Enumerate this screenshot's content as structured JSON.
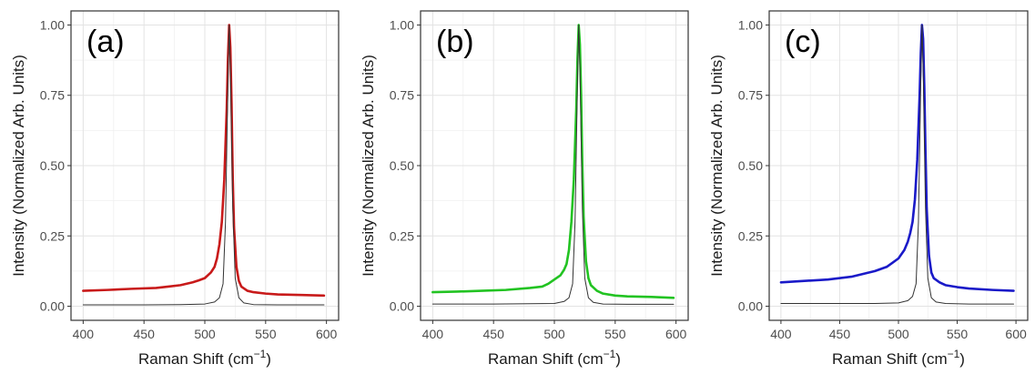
{
  "chart_data": [
    {
      "type": "line",
      "panel_label": "(a)",
      "xlabel": "Raman Shift (cm",
      "xlabel_sup": "−1",
      "xlabel_close": ")",
      "ylabel": "Intensity (Normalized Arb. Units)",
      "xlim": [
        400,
        600
      ],
      "ylim": [
        0,
        1
      ],
      "x_ticks": [
        "400",
        "450",
        "500",
        "550",
        "600"
      ],
      "y_ticks": [
        "0.00",
        "0.25",
        "0.50",
        "0.75",
        "1.00"
      ],
      "grid": true,
      "series": [
        {
          "color": "#c81a1a",
          "x": [
            400,
            420,
            440,
            460,
            470,
            480,
            490,
            495,
            500,
            505,
            508,
            510,
            512,
            514,
            516,
            518,
            519,
            520,
            521,
            522,
            523,
            524,
            526,
            528,
            530,
            535,
            540,
            550,
            560,
            580,
            598
          ],
          "y": [
            0.055,
            0.058,
            0.062,
            0.065,
            0.07,
            0.075,
            0.085,
            0.092,
            0.1,
            0.12,
            0.14,
            0.17,
            0.22,
            0.3,
            0.45,
            0.7,
            0.88,
            1.0,
            0.92,
            0.72,
            0.45,
            0.28,
            0.14,
            0.09,
            0.07,
            0.055,
            0.05,
            0.045,
            0.042,
            0.04,
            0.038
          ]
        },
        {
          "color": "#333333",
          "x": [
            400,
            450,
            480,
            500,
            508,
            512,
            515,
            517,
            519,
            520,
            521,
            523,
            525,
            528,
            532,
            540,
            560,
            598
          ],
          "y": [
            0.005,
            0.005,
            0.006,
            0.008,
            0.015,
            0.03,
            0.08,
            0.3,
            0.8,
            1.0,
            0.85,
            0.35,
            0.1,
            0.03,
            0.012,
            0.006,
            0.005,
            0.005
          ]
        }
      ]
    },
    {
      "type": "line",
      "panel_label": "(b)",
      "xlabel": "Raman Shift (cm",
      "xlabel_sup": "−1",
      "xlabel_close": ")",
      "ylabel": "Intensity (Normalized Arb. Units)",
      "xlim": [
        400,
        600
      ],
      "ylim": [
        0,
        1
      ],
      "x_ticks": [
        "400",
        "450",
        "500",
        "550",
        "600"
      ],
      "y_ticks": [
        "0.00",
        "0.25",
        "0.50",
        "0.75",
        "1.00"
      ],
      "grid": true,
      "series": [
        {
          "color": "#22c322",
          "x": [
            400,
            420,
            440,
            460,
            480,
            490,
            495,
            500,
            505,
            508,
            510,
            512,
            514,
            516,
            518,
            519,
            520,
            521,
            522,
            523,
            524,
            526,
            528,
            530,
            535,
            540,
            550,
            560,
            580,
            598
          ],
          "y": [
            0.05,
            0.052,
            0.055,
            0.058,
            0.065,
            0.07,
            0.08,
            0.095,
            0.11,
            0.13,
            0.15,
            0.2,
            0.3,
            0.45,
            0.7,
            0.88,
            1.0,
            0.93,
            0.75,
            0.5,
            0.32,
            0.16,
            0.1,
            0.075,
            0.055,
            0.045,
            0.038,
            0.035,
            0.033,
            0.03
          ]
        },
        {
          "color": "#333333",
          "x": [
            400,
            450,
            480,
            500,
            508,
            512,
            515,
            517,
            519,
            520,
            521,
            523,
            525,
            528,
            532,
            540,
            560,
            598
          ],
          "y": [
            0.008,
            0.008,
            0.009,
            0.01,
            0.017,
            0.03,
            0.08,
            0.3,
            0.8,
            1.0,
            0.85,
            0.35,
            0.1,
            0.03,
            0.014,
            0.008,
            0.007,
            0.007
          ]
        }
      ]
    },
    {
      "type": "line",
      "panel_label": "(c)",
      "xlabel": "Raman Shift (cm",
      "xlabel_sup": "−1",
      "xlabel_close": ")",
      "ylabel": "Intensity (Normalized Arb. Units)",
      "xlim": [
        400,
        600
      ],
      "ylim": [
        0,
        1
      ],
      "x_ticks": [
        "400",
        "450",
        "500",
        "550",
        "600"
      ],
      "y_ticks": [
        "0.00",
        "0.25",
        "0.50",
        "0.75",
        "1.00"
      ],
      "grid": true,
      "series": [
        {
          "color": "#1a1ac8",
          "x": [
            400,
            420,
            440,
            460,
            470,
            480,
            490,
            495,
            500,
            505,
            508,
            510,
            512,
            514,
            516,
            518,
            519,
            520,
            521,
            522,
            523,
            524,
            526,
            528,
            530,
            535,
            540,
            550,
            560,
            580,
            598
          ],
          "y": [
            0.085,
            0.09,
            0.095,
            0.105,
            0.115,
            0.125,
            0.14,
            0.155,
            0.17,
            0.2,
            0.23,
            0.26,
            0.3,
            0.38,
            0.52,
            0.75,
            0.9,
            1.0,
            0.95,
            0.78,
            0.55,
            0.35,
            0.18,
            0.12,
            0.1,
            0.085,
            0.075,
            0.068,
            0.063,
            0.058,
            0.055
          ]
        },
        {
          "color": "#333333",
          "x": [
            400,
            450,
            480,
            500,
            508,
            512,
            515,
            517,
            519,
            520,
            521,
            523,
            525,
            528,
            532,
            540,
            560,
            598
          ],
          "y": [
            0.01,
            0.01,
            0.01,
            0.012,
            0.02,
            0.035,
            0.08,
            0.3,
            0.8,
            1.0,
            0.85,
            0.35,
            0.1,
            0.03,
            0.015,
            0.01,
            0.008,
            0.008
          ]
        }
      ]
    }
  ]
}
